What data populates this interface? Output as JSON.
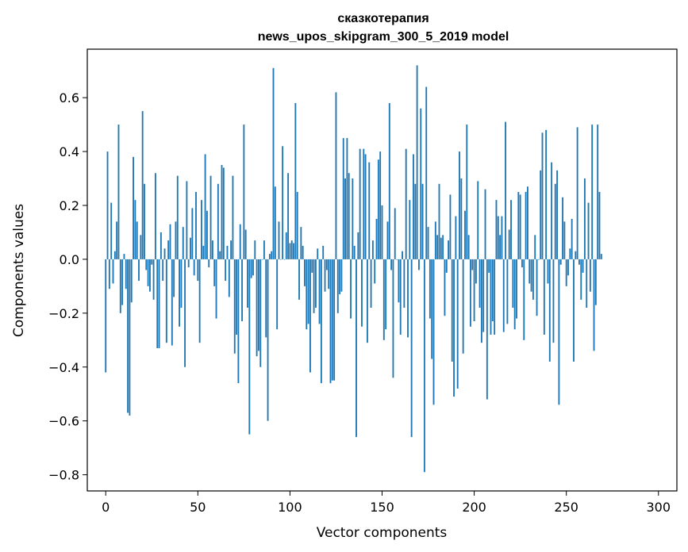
{
  "chart_data": {
    "type": "bar",
    "title": [
      "сказкотерапия",
      "news_upos_skipgram_300_5_2019 model"
    ],
    "xlabel": "Vector components",
    "ylabel": "Components values",
    "xlim": [
      -10,
      310
    ],
    "ylim": [
      -0.86,
      0.78
    ],
    "xticks": [
      0,
      50,
      100,
      150,
      200,
      250,
      300
    ],
    "xtick_labels": [
      "0",
      "50",
      "100",
      "150",
      "200",
      "250",
      "300"
    ],
    "yticks": [
      -0.8,
      -0.6,
      -0.4,
      -0.2,
      0.0,
      0.2,
      0.4,
      0.6
    ],
    "ytick_labels": [
      "−0.8",
      "−0.6",
      "−0.4",
      "−0.2",
      "0.0",
      "0.2",
      "0.4",
      "0.6"
    ],
    "bar_color": "#1f77b4",
    "values": [
      -0.42,
      0.4,
      -0.11,
      0.21,
      -0.09,
      0.03,
      0.14,
      0.5,
      -0.2,
      -0.17,
      0.02,
      -0.11,
      -0.57,
      -0.58,
      -0.16,
      0.38,
      0.22,
      0.14,
      -0.08,
      0.09,
      0.55,
      0.28,
      -0.04,
      -0.1,
      -0.12,
      -0.02,
      -0.15,
      0.32,
      -0.33,
      -0.33,
      0.1,
      -0.08,
      0.04,
      -0.31,
      0.07,
      0.13,
      -0.32,
      -0.14,
      0.14,
      0.31,
      -0.25,
      -0.18,
      0.12,
      -0.4,
      0.29,
      -0.03,
      0.08,
      0.19,
      -0.06,
      0.25,
      -0.08,
      -0.31,
      0.22,
      0.05,
      0.39,
      0.18,
      -0.03,
      0.31,
      0.07,
      -0.1,
      -0.22,
      0.28,
      0.03,
      0.35,
      0.34,
      -0.08,
      0.05,
      -0.14,
      0.07,
      0.31,
      -0.35,
      -0.28,
      -0.46,
      0.13,
      -0.23,
      0.5,
      0.11,
      -0.18,
      -0.65,
      -0.07,
      -0.06,
      0.07,
      -0.36,
      -0.34,
      -0.4,
      0.0,
      0.07,
      -0.29,
      -0.6,
      0.02,
      0.03,
      0.71,
      0.27,
      -0.26,
      0.14,
      0.0,
      0.42,
      0.0,
      0.1,
      0.32,
      0.06,
      0.07,
      0.06,
      0.58,
      0.25,
      -0.15,
      0.12,
      0.05,
      -0.1,
      -0.26,
      -0.24,
      -0.42,
      -0.05,
      -0.2,
      -0.18,
      0.04,
      -0.24,
      -0.46,
      0.05,
      -0.12,
      -0.04,
      -0.11,
      -0.46,
      -0.45,
      -0.45,
      0.62,
      -0.2,
      -0.13,
      -0.12,
      0.45,
      0.3,
      0.45,
      0.32,
      -0.22,
      0.3,
      0.05,
      -0.66,
      0.1,
      0.41,
      -0.25,
      0.41,
      0.39,
      -0.31,
      0.36,
      -0.18,
      0.07,
      -0.09,
      0.15,
      0.37,
      0.4,
      0.2,
      -0.3,
      -0.26,
      0.14,
      0.58,
      -0.04,
      -0.44,
      0.19,
      0.0,
      -0.16,
      -0.28,
      0.03,
      -0.18,
      0.41,
      -0.29,
      0.22,
      -0.66,
      0.39,
      0.28,
      0.72,
      -0.04,
      0.56,
      0.28,
      -0.79,
      0.64,
      0.12,
      -0.22,
      -0.37,
      -0.54,
      0.14,
      0.09,
      0.28,
      0.08,
      0.09,
      -0.21,
      -0.05,
      0.07,
      0.24,
      -0.38,
      -0.51,
      0.16,
      -0.48,
      0.4,
      0.3,
      -0.35,
      0.18,
      0.5,
      0.09,
      -0.25,
      -0.04,
      -0.23,
      -0.09,
      0.29,
      -0.18,
      -0.31,
      -0.27,
      0.26,
      -0.52,
      -0.05,
      -0.28,
      -0.23,
      -0.28,
      0.22,
      0.16,
      0.09,
      0.16,
      -0.27,
      0.51,
      -0.24,
      0.11,
      0.22,
      -0.18,
      -0.26,
      -0.22,
      0.25,
      0.24,
      -0.03,
      -0.3,
      0.25,
      0.27,
      -0.09,
      -0.12,
      -0.15,
      0.09,
      -0.21,
      0.0,
      0.33,
      0.47,
      -0.28,
      0.48,
      -0.09,
      -0.38,
      0.36,
      -0.31,
      0.28,
      0.33,
      -0.54,
      -0.02,
      0.23,
      0.14,
      -0.1,
      -0.06,
      0.04,
      0.15,
      -0.38,
      0.03,
      0.49,
      -0.02,
      -0.15,
      -0.05,
      0.3,
      -0.18,
      0.21,
      -0.12,
      0.5,
      -0.34,
      -0.17,
      0.5,
      0.25,
      0.02
    ]
  }
}
